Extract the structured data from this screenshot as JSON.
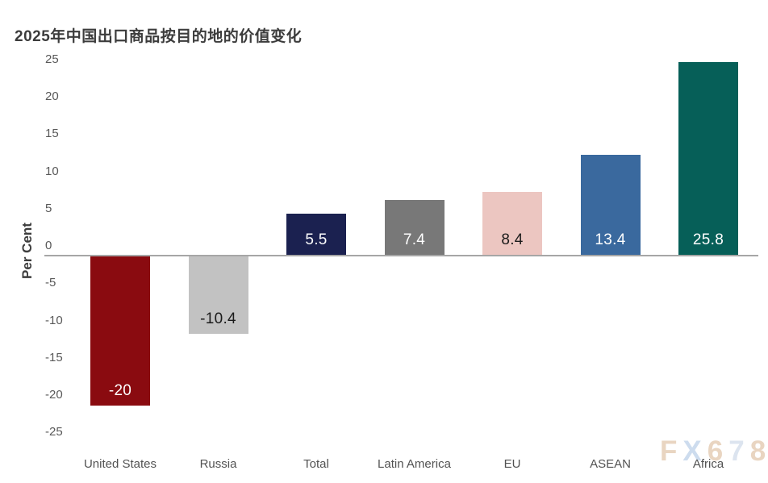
{
  "chart_data": {
    "type": "bar",
    "title": "2025年中国出口商品按目的地的价值变化",
    "ylabel": "Per Cent",
    "xlabel": "",
    "categories": [
      "United States",
      "Russia",
      "Total",
      "Latin America",
      "EU",
      "ASEAN",
      "Africa"
    ],
    "values": [
      -20,
      -10.4,
      5.5,
      7.4,
      8.4,
      13.4,
      25.8
    ],
    "value_labels": [
      "-20",
      "-10.4",
      "5.5",
      "7.4",
      "8.4",
      "13.4",
      "25.8"
    ],
    "bar_colors": [
      "#8a0b10",
      "#c2c2c2",
      "#1b2150",
      "#787878",
      "#ecc6c1",
      "#3a699e",
      "#065f58"
    ],
    "value_label_colors": [
      "#ffffff",
      "#1a1a1a",
      "#ffffff",
      "#ffffff",
      "#1a1a1a",
      "#ffffff",
      "#ffffff"
    ],
    "ylim": [
      -25,
      25
    ],
    "yticks": [
      25,
      20,
      15,
      10,
      5,
      0,
      -5,
      -10,
      -15,
      -20,
      -25
    ],
    "grid": false,
    "legend_position": "none",
    "title_color": "#3c3c3c",
    "axis_color": "#a6a6a6",
    "tick_color": "#595959"
  },
  "watermark": {
    "text": "FX678",
    "letter_colors": [
      "#e9d5c1",
      "#cddcee",
      "#e9d5c1",
      "#dce4ef",
      "#e9d5c1"
    ]
  }
}
